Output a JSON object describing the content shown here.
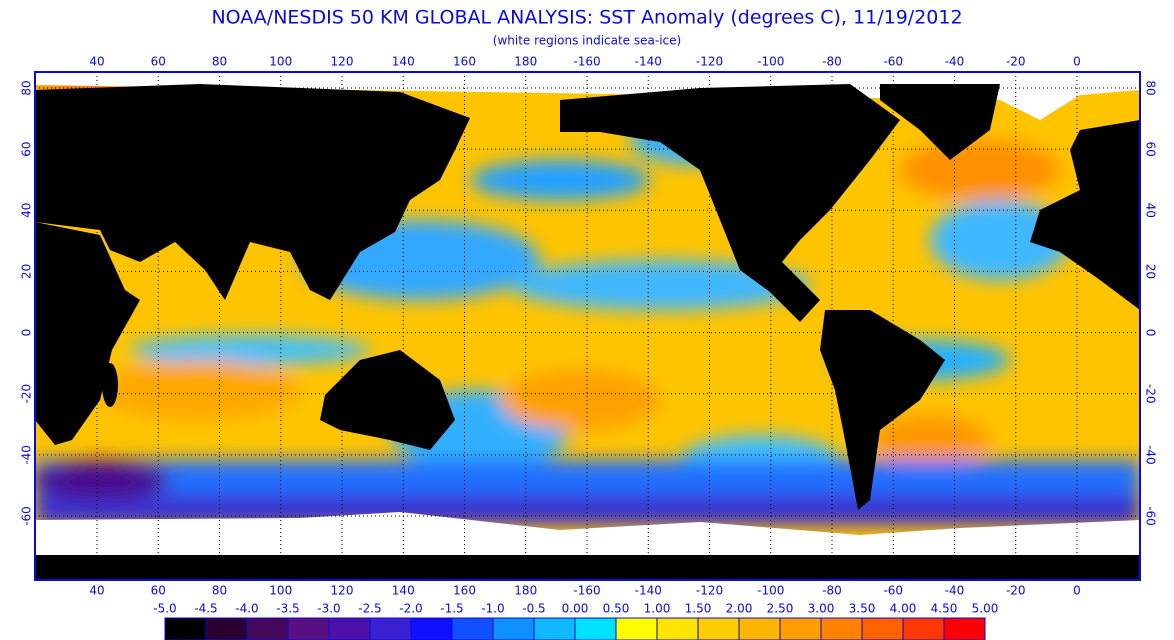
{
  "title": "NOAA/NESDIS 50 KM GLOBAL ANALYSIS: SST Anomaly (degrees C), 11/19/2012",
  "subtitle": "(white regions indicate sea-ice)",
  "longitude_labels": [
    "40",
    "60",
    "80",
    "100",
    "120",
    "140",
    "160",
    "180",
    "-160",
    "-140",
    "-120",
    "-100",
    "-80",
    "-60",
    "-40",
    "-20",
    "0"
  ],
  "latitude_labels": [
    "80",
    "60",
    "40",
    "20",
    "0",
    "-20",
    "-40",
    "-60"
  ],
  "colorbar": {
    "labels": [
      "-5.0",
      "-4.5",
      "-4.0",
      "-3.5",
      "-3.0",
      "-2.5",
      "-2.0",
      "-1.5",
      "-1.0",
      "-0.5",
      "0.00",
      "0.50",
      "1.00",
      "1.50",
      "2.00",
      "2.50",
      "3.00",
      "3.50",
      "4.00",
      "4.50",
      "5.00"
    ],
    "colors": [
      "#000000",
      "#2a0030",
      "#44085a",
      "#581080",
      "#4a10a8",
      "#3a20d0",
      "#1010ff",
      "#1050ff",
      "#1090ff",
      "#10b8ff",
      "#00e0ff",
      "#ffff00",
      "#ffe400",
      "#ffcc00",
      "#ffb400",
      "#ff9c00",
      "#ff8200",
      "#ff6000",
      "#ff3800",
      "#ff0000"
    ]
  }
}
